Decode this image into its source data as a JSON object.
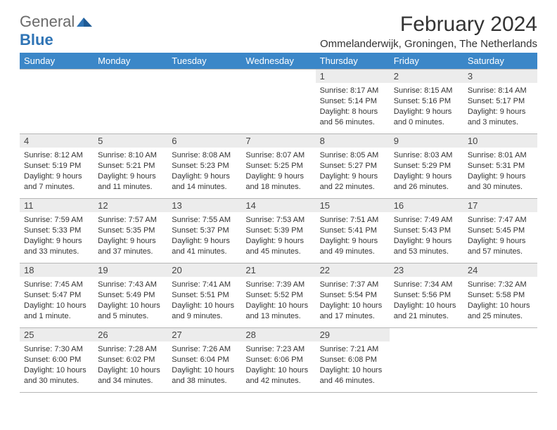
{
  "logo": {
    "general": "General",
    "blue": "Blue"
  },
  "title": "February 2024",
  "subtitle": "Ommelanderwijk, Groningen, The Netherlands",
  "colors": {
    "header_bg": "#3b87c8",
    "header_fg": "#ffffff",
    "daynum_bg": "#ececec",
    "border": "#b6b6b6",
    "body_text": "#333333",
    "logo_gray": "#6a6a6a",
    "logo_blue": "#2f74b5"
  },
  "day_headers": [
    "Sunday",
    "Monday",
    "Tuesday",
    "Wednesday",
    "Thursday",
    "Friday",
    "Saturday"
  ],
  "weeks": [
    [
      null,
      null,
      null,
      null,
      {
        "n": 1,
        "sunrise": "8:17 AM",
        "sunset": "5:14 PM",
        "daylight": "8 hours and 56 minutes."
      },
      {
        "n": 2,
        "sunrise": "8:15 AM",
        "sunset": "5:16 PM",
        "daylight": "9 hours and 0 minutes."
      },
      {
        "n": 3,
        "sunrise": "8:14 AM",
        "sunset": "5:17 PM",
        "daylight": "9 hours and 3 minutes."
      }
    ],
    [
      {
        "n": 4,
        "sunrise": "8:12 AM",
        "sunset": "5:19 PM",
        "daylight": "9 hours and 7 minutes."
      },
      {
        "n": 5,
        "sunrise": "8:10 AM",
        "sunset": "5:21 PM",
        "daylight": "9 hours and 11 minutes."
      },
      {
        "n": 6,
        "sunrise": "8:08 AM",
        "sunset": "5:23 PM",
        "daylight": "9 hours and 14 minutes."
      },
      {
        "n": 7,
        "sunrise": "8:07 AM",
        "sunset": "5:25 PM",
        "daylight": "9 hours and 18 minutes."
      },
      {
        "n": 8,
        "sunrise": "8:05 AM",
        "sunset": "5:27 PM",
        "daylight": "9 hours and 22 minutes."
      },
      {
        "n": 9,
        "sunrise": "8:03 AM",
        "sunset": "5:29 PM",
        "daylight": "9 hours and 26 minutes."
      },
      {
        "n": 10,
        "sunrise": "8:01 AM",
        "sunset": "5:31 PM",
        "daylight": "9 hours and 30 minutes."
      }
    ],
    [
      {
        "n": 11,
        "sunrise": "7:59 AM",
        "sunset": "5:33 PM",
        "daylight": "9 hours and 33 minutes."
      },
      {
        "n": 12,
        "sunrise": "7:57 AM",
        "sunset": "5:35 PM",
        "daylight": "9 hours and 37 minutes."
      },
      {
        "n": 13,
        "sunrise": "7:55 AM",
        "sunset": "5:37 PM",
        "daylight": "9 hours and 41 minutes."
      },
      {
        "n": 14,
        "sunrise": "7:53 AM",
        "sunset": "5:39 PM",
        "daylight": "9 hours and 45 minutes."
      },
      {
        "n": 15,
        "sunrise": "7:51 AM",
        "sunset": "5:41 PM",
        "daylight": "9 hours and 49 minutes."
      },
      {
        "n": 16,
        "sunrise": "7:49 AM",
        "sunset": "5:43 PM",
        "daylight": "9 hours and 53 minutes."
      },
      {
        "n": 17,
        "sunrise": "7:47 AM",
        "sunset": "5:45 PM",
        "daylight": "9 hours and 57 minutes."
      }
    ],
    [
      {
        "n": 18,
        "sunrise": "7:45 AM",
        "sunset": "5:47 PM",
        "daylight": "10 hours and 1 minute."
      },
      {
        "n": 19,
        "sunrise": "7:43 AM",
        "sunset": "5:49 PM",
        "daylight": "10 hours and 5 minutes."
      },
      {
        "n": 20,
        "sunrise": "7:41 AM",
        "sunset": "5:51 PM",
        "daylight": "10 hours and 9 minutes."
      },
      {
        "n": 21,
        "sunrise": "7:39 AM",
        "sunset": "5:52 PM",
        "daylight": "10 hours and 13 minutes."
      },
      {
        "n": 22,
        "sunrise": "7:37 AM",
        "sunset": "5:54 PM",
        "daylight": "10 hours and 17 minutes."
      },
      {
        "n": 23,
        "sunrise": "7:34 AM",
        "sunset": "5:56 PM",
        "daylight": "10 hours and 21 minutes."
      },
      {
        "n": 24,
        "sunrise": "7:32 AM",
        "sunset": "5:58 PM",
        "daylight": "10 hours and 25 minutes."
      }
    ],
    [
      {
        "n": 25,
        "sunrise": "7:30 AM",
        "sunset": "6:00 PM",
        "daylight": "10 hours and 30 minutes."
      },
      {
        "n": 26,
        "sunrise": "7:28 AM",
        "sunset": "6:02 PM",
        "daylight": "10 hours and 34 minutes."
      },
      {
        "n": 27,
        "sunrise": "7:26 AM",
        "sunset": "6:04 PM",
        "daylight": "10 hours and 38 minutes."
      },
      {
        "n": 28,
        "sunrise": "7:23 AM",
        "sunset": "6:06 PM",
        "daylight": "10 hours and 42 minutes."
      },
      {
        "n": 29,
        "sunrise": "7:21 AM",
        "sunset": "6:08 PM",
        "daylight": "10 hours and 46 minutes."
      },
      null,
      null
    ]
  ]
}
